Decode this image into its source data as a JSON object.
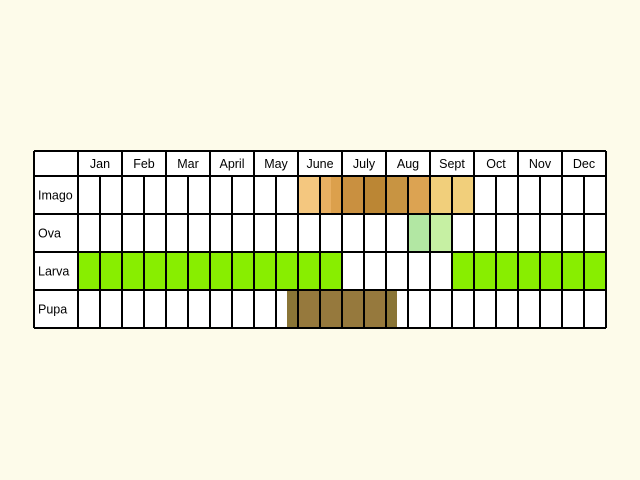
{
  "chart_data": {
    "type": "table",
    "title": "",
    "months": [
      "Jan",
      "Feb",
      "Mar",
      "April",
      "May",
      "June",
      "July",
      "Aug",
      "Sept",
      "Oct",
      "Nov",
      "Dec"
    ],
    "stages": [
      {
        "name": "Imago",
        "periods": [
          {
            "start": 5.0,
            "end": 5.5,
            "color": "#f4c77f"
          },
          {
            "start": 5.5,
            "end": 5.75,
            "color": "#e9b062"
          },
          {
            "start": 5.75,
            "end": 6.0,
            "color": "#dca04c"
          },
          {
            "start": 6.0,
            "end": 6.5,
            "color": "#c99040"
          },
          {
            "start": 6.5,
            "end": 7.0,
            "color": "#bb8634"
          },
          {
            "start": 7.0,
            "end": 7.5,
            "color": "#c89442"
          },
          {
            "start": 7.5,
            "end": 8.0,
            "color": "#dca352"
          },
          {
            "start": 8.0,
            "end": 9.0,
            "color": "#f1cf7b"
          }
        ]
      },
      {
        "name": "Ova",
        "periods": [
          {
            "start": 7.5,
            "end": 8.0,
            "color": "#b2e7a3"
          },
          {
            "start": 8.0,
            "end": 8.5,
            "color": "#c6f0a3"
          }
        ]
      },
      {
        "name": "Larva",
        "periods": [
          {
            "start": 0.0,
            "end": 6.0,
            "color": "#88ee00"
          },
          {
            "start": 8.5,
            "end": 12.0,
            "color": "#88ee00"
          }
        ]
      },
      {
        "name": "Pupa",
        "periods": [
          {
            "start": 4.75,
            "end": 5.0,
            "color": "#8a7536"
          },
          {
            "start": 5.0,
            "end": 7.0,
            "color": "#96793d"
          },
          {
            "start": 7.0,
            "end": 7.25,
            "color": "#8a7536"
          }
        ]
      }
    ],
    "grid": true,
    "subdivisions_per_month": 2,
    "colors": {
      "background": "#fdfbea",
      "cell": "#ffffff",
      "line": "#000000"
    }
  }
}
